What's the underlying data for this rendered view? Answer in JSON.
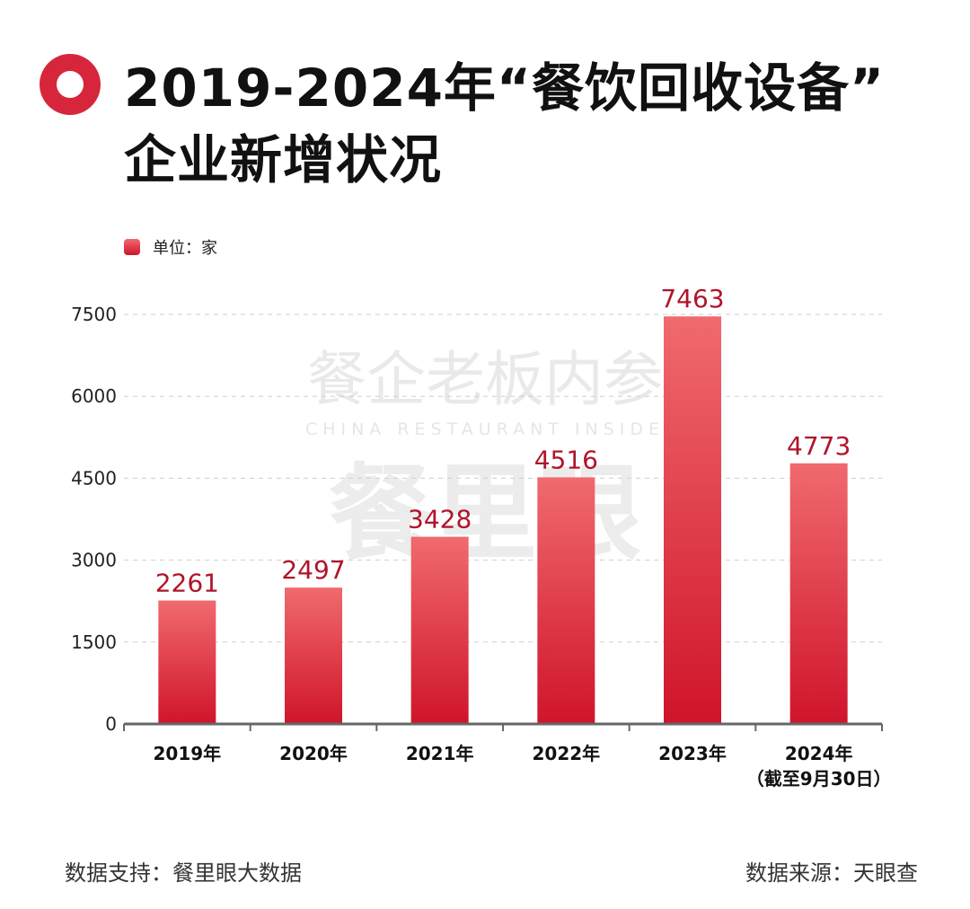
{
  "title_line1": "2019-2024年“餐饮回收设备”",
  "title_line2": "企业新增状况",
  "legend_label": "单位：家",
  "footer": {
    "left": "数据支持：餐里眼大数据",
    "right": "数据来源：天眼查"
  },
  "watermark": {
    "line1": "餐企老板内参",
    "line2": "CHINA RESTAURANT INSIDE",
    "line3": "餐里眼"
  },
  "colors": {
    "accent": "#d7263b",
    "value_label": "#b0142a",
    "bar_top": "#f06a6f",
    "bar_bottom": "#d0142b"
  },
  "chart_data": {
    "type": "bar",
    "categories": [
      "2019年",
      "2020年",
      "2021年",
      "2022年",
      "2023年",
      "2024年"
    ],
    "category_sublabels": [
      "",
      "",
      "",
      "",
      "",
      "（截至9月30日）"
    ],
    "values": [
      2261,
      2497,
      3428,
      4516,
      7463,
      4773
    ],
    "yticks": [
      0,
      1500,
      3000,
      4500,
      6000,
      7500
    ],
    "ylim": [
      0,
      7500
    ],
    "grid": true,
    "grid_style": "dashed",
    "legend": "top-left",
    "unit": "单位：家"
  }
}
